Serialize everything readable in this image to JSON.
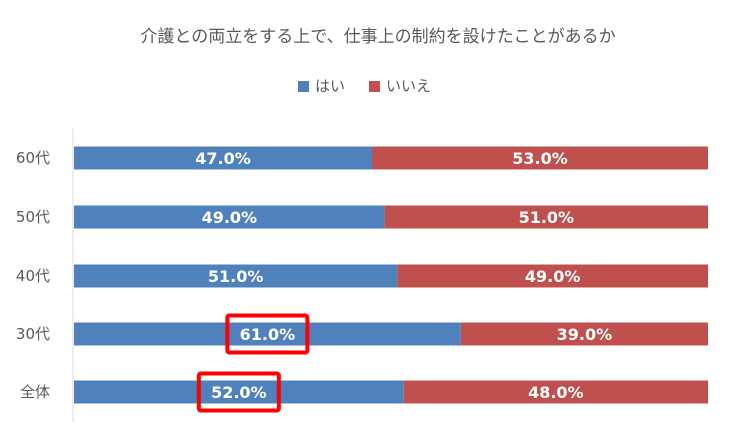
{
  "chart_data": {
    "type": "bar",
    "orientation": "horizontal",
    "stacked": "percent",
    "title": "介護との両立をする上で、仕事上の制約を設けたことがあるか",
    "legend_position": "top",
    "grid": false,
    "xlim": [
      0,
      100
    ],
    "categories": [
      "60代",
      "50代",
      "40代",
      "30代",
      "全体"
    ],
    "series": [
      {
        "name": "はい",
        "color": "#4F81BD",
        "values": [
          47.0,
          49.0,
          51.0,
          61.0,
          52.0
        ],
        "labels": [
          "47.0%",
          "49.0%",
          "51.0%",
          "61.0%",
          "52.0%"
        ]
      },
      {
        "name": "いいえ",
        "color": "#C0504D",
        "values": [
          53.0,
          51.0,
          49.0,
          39.0,
          48.0
        ],
        "labels": [
          "53.0%",
          "51.0%",
          "49.0%",
          "39.0%",
          "48.0%"
        ]
      }
    ],
    "highlighted": [
      {
        "category": "30代",
        "series": "はい"
      },
      {
        "category": "全体",
        "series": "はい"
      }
    ],
    "highlight_color": "#FF0000"
  }
}
